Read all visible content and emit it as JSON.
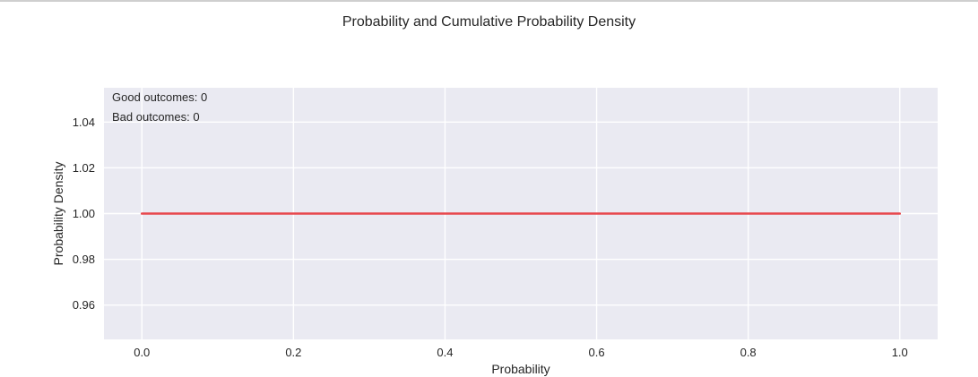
{
  "chart_data": {
    "type": "line",
    "title": "Probability and Cumulative Probability Density",
    "xlabel": "Probability",
    "ylabel": "Probability Density",
    "xlim": [
      -0.05,
      1.05
    ],
    "ylim": [
      0.945,
      1.055
    ],
    "xticks": [
      0.0,
      0.2,
      0.4,
      0.6,
      0.8,
      1.0
    ],
    "xtick_labels": [
      "0.0",
      "0.2",
      "0.4",
      "0.6",
      "0.8",
      "1.0"
    ],
    "yticks": [
      0.96,
      0.98,
      1.0,
      1.02,
      1.04
    ],
    "ytick_labels": [
      "0.96",
      "0.98",
      "1.00",
      "1.02",
      "1.04"
    ],
    "grid": true,
    "series": [
      {
        "color": "#e8474c",
        "x": [
          0.0,
          1.0
        ],
        "y": [
          1.0,
          1.0
        ]
      }
    ],
    "annotations": [
      "Good outcomes: 0",
      "Bad outcomes: 0"
    ]
  },
  "style": {
    "plot_background": "#eaeaf2",
    "grid_color": "#ffffff",
    "line_color": "#e8474c"
  }
}
